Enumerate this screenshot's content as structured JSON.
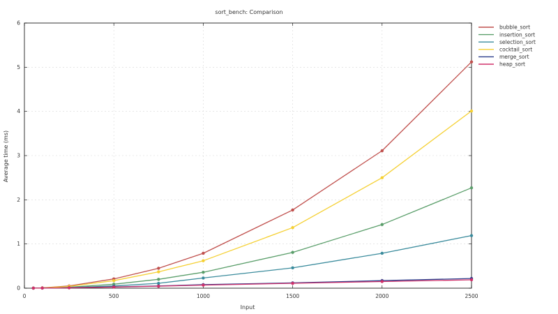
{
  "chart_data": {
    "type": "line",
    "title": "sort_bench: Comparison",
    "xlabel": "Input",
    "ylabel": "Average time (ms)",
    "xlim": [
      0,
      2500
    ],
    "ylim": [
      0,
      6
    ],
    "xticks": [
      0,
      500,
      1000,
      1500,
      2000,
      2500
    ],
    "yticks": [
      0,
      1,
      2,
      3,
      4,
      5,
      6
    ],
    "grid": true,
    "legend_position": "right",
    "x": [
      50,
      100,
      250,
      500,
      750,
      1000,
      1500,
      2000,
      2500
    ],
    "series": [
      {
        "name": "bubble_sort",
        "color": "#c0504d",
        "values": [
          0.002,
          0.008,
          0.05,
          0.21,
          0.45,
          0.79,
          1.77,
          3.11,
          5.12
        ]
      },
      {
        "name": "insertion_sort",
        "color": "#5a9e6a",
        "values": [
          0.001,
          0.004,
          0.022,
          0.09,
          0.2,
          0.36,
          0.81,
          1.44,
          2.27
        ]
      },
      {
        "name": "selection_sort",
        "color": "#3a8b9c",
        "values": [
          0.001,
          0.003,
          0.012,
          0.05,
          0.11,
          0.23,
          0.46,
          0.79,
          1.19
        ]
      },
      {
        "name": "cocktail_sort",
        "color": "#f5d033",
        "values": [
          0.002,
          0.006,
          0.04,
          0.17,
          0.37,
          0.62,
          1.37,
          2.5,
          4.01
        ]
      },
      {
        "name": "merge_sort",
        "color": "#2c3e8c",
        "values": [
          0.001,
          0.002,
          0.01,
          0.03,
          0.05,
          0.08,
          0.12,
          0.17,
          0.22
        ]
      },
      {
        "name": "heap_sort",
        "color": "#d0306a",
        "values": [
          0.001,
          0.002,
          0.008,
          0.025,
          0.045,
          0.07,
          0.11,
          0.15,
          0.19
        ]
      }
    ]
  }
}
